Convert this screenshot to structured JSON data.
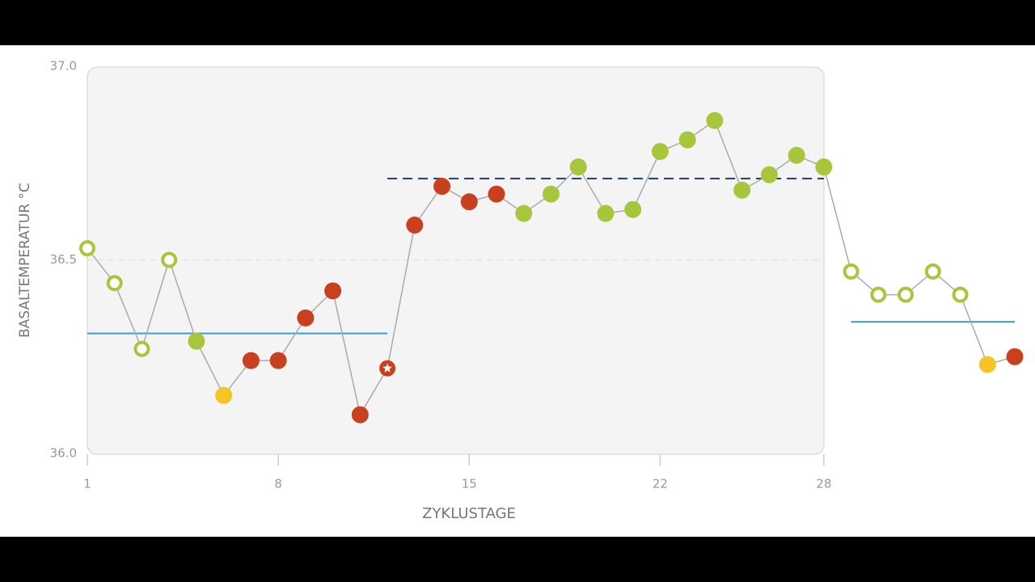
{
  "chart_data": {
    "type": "line",
    "y_label": "BASALTEMPERATUR °C",
    "x_label": "ZYKLUSTAGE",
    "x": [
      1,
      2,
      3,
      4,
      5,
      6,
      7,
      8,
      9,
      10,
      11,
      12,
      13,
      14,
      15,
      16,
      17,
      18,
      19,
      20,
      21,
      22,
      23,
      24,
      25,
      26,
      27,
      28,
      29,
      30,
      31,
      32,
      33,
      34,
      35
    ],
    "values": [
      36.53,
      36.44,
      36.27,
      36.5,
      36.29,
      36.15,
      36.24,
      36.24,
      36.35,
      36.42,
      36.1,
      36.22,
      36.59,
      36.69,
      36.65,
      36.67,
      36.62,
      36.67,
      36.74,
      36.62,
      36.63,
      36.78,
      36.81,
      36.86,
      36.68,
      36.72,
      36.77,
      36.74,
      36.47,
      36.41,
      36.41,
      36.47,
      36.41,
      36.23,
      36.25
    ],
    "point_kinds": [
      "open",
      "open",
      "open",
      "open",
      "green",
      "yellow",
      "red",
      "red",
      "red",
      "red",
      "red",
      "star",
      "red",
      "red",
      "red",
      "red",
      "green",
      "green",
      "green",
      "green",
      "green",
      "green",
      "green",
      "green",
      "green",
      "green",
      "green",
      "green",
      "open",
      "open",
      "open",
      "open",
      "open",
      "yellow",
      "red"
    ],
    "kind_colors": {
      "open": "#a8c63c",
      "green": "#a8c63c",
      "yellow": "#f5c524",
      "red": "#c9401f",
      "star": "#c9401f"
    },
    "line_color": "#aaaaaa",
    "xlim": [
      1,
      35
    ],
    "xticks": [
      1,
      8,
      15,
      22,
      28
    ],
    "ylim": [
      36.0,
      37.0
    ],
    "yticks": [
      {
        "value": 36.0,
        "label": "36.0"
      },
      36.5,
      {
        "value": 37.0,
        "label": "37.0"
      }
    ],
    "reference_lines": [
      {
        "value": 36.31,
        "from": 1,
        "to": 12,
        "color": "#3a9fd0",
        "style": "solid"
      },
      {
        "value": 36.71,
        "from": 12,
        "to": 28,
        "color": "#1f3f5f",
        "style": "dashed"
      },
      {
        "value": 36.34,
        "from": 29,
        "to": 35,
        "color": "#3a9fd0",
        "style": "solid"
      }
    ]
  }
}
